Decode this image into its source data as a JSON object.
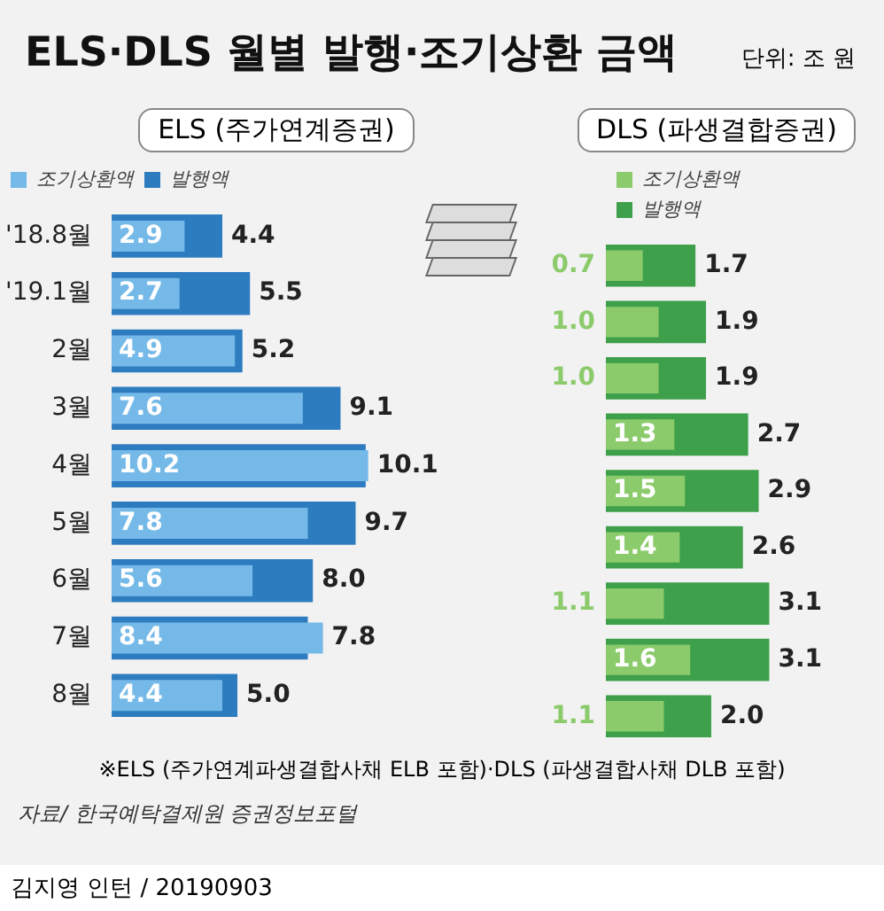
{
  "chart_data": [
    {
      "type": "bar",
      "title": "ELS·DLS 월별 발행·조기상환 금액",
      "subtitle": "ELS (주가연계증권)",
      "orientation": "horizontal",
      "legend": "top",
      "tick_labels": "y",
      "categories": [
        "'18.8월",
        "'19.1월",
        "2월",
        "3월",
        "4월",
        "5월",
        "6월",
        "7월",
        "8월"
      ],
      "series": [
        {
          "name": "조기상환액",
          "color": "#74b9e8",
          "values": [
            2.9,
            2.7,
            4.9,
            7.6,
            10.2,
            7.8,
            5.6,
            8.4,
            4.4
          ],
          "value_labels": [
            "2.9",
            "2.7",
            "4.9",
            "7.6",
            "10.2",
            "7.8",
            "5.6",
            "8.4",
            "4.4"
          ]
        },
        {
          "name": "발행액",
          "color": "#2e7cc0",
          "values": [
            4.4,
            5.5,
            5.2,
            9.1,
            10.1,
            9.7,
            8.0,
            7.8,
            5.0
          ],
          "value_labels": [
            "4.4",
            "5.5",
            "5.2",
            "9.1",
            "10.1",
            "9.7",
            "8.0",
            "7.8",
            "5.0"
          ]
        }
      ],
      "annotations": [
        "단위: 조 원",
        "※ELS (주가연계파생결합사채 ELB 포함)·DLS (파생결합사채 DLB 포함)",
        "자료/ 한국예탁결제원 증권정보포털",
        "김지영 인턴 / 20190903"
      ]
    },
    {
      "type": "bar",
      "title": "DLS (파생결합증권)",
      "orientation": "horizontal",
      "legend": "top",
      "tick_labels": false,
      "categories": [
        null,
        null,
        null,
        null,
        null,
        null,
        null,
        null,
        null
      ],
      "series": [
        {
          "name": "조기상환액",
          "color": "#8ccb6c",
          "values": [
            0.7,
            1.0,
            1.0,
            1.3,
            1.5,
            1.4,
            1.1,
            1.6,
            1.1
          ],
          "value_labels": [
            "0.7",
            "1.0",
            "1.0",
            "1.3",
            "1.5",
            "1.4",
            "1.1",
            "1.6",
            "1.1"
          ]
        },
        {
          "name": "발행액",
          "color": "#3ea04a",
          "values": [
            1.7,
            1.9,
            1.9,
            2.7,
            2.9,
            2.6,
            3.1,
            3.1,
            2.0
          ],
          "value_labels": [
            "1.7",
            "1.9",
            "1.9",
            "2.7",
            "2.9",
            "2.6",
            "3.1",
            "3.1",
            "2.0"
          ]
        }
      ]
    }
  ]
}
